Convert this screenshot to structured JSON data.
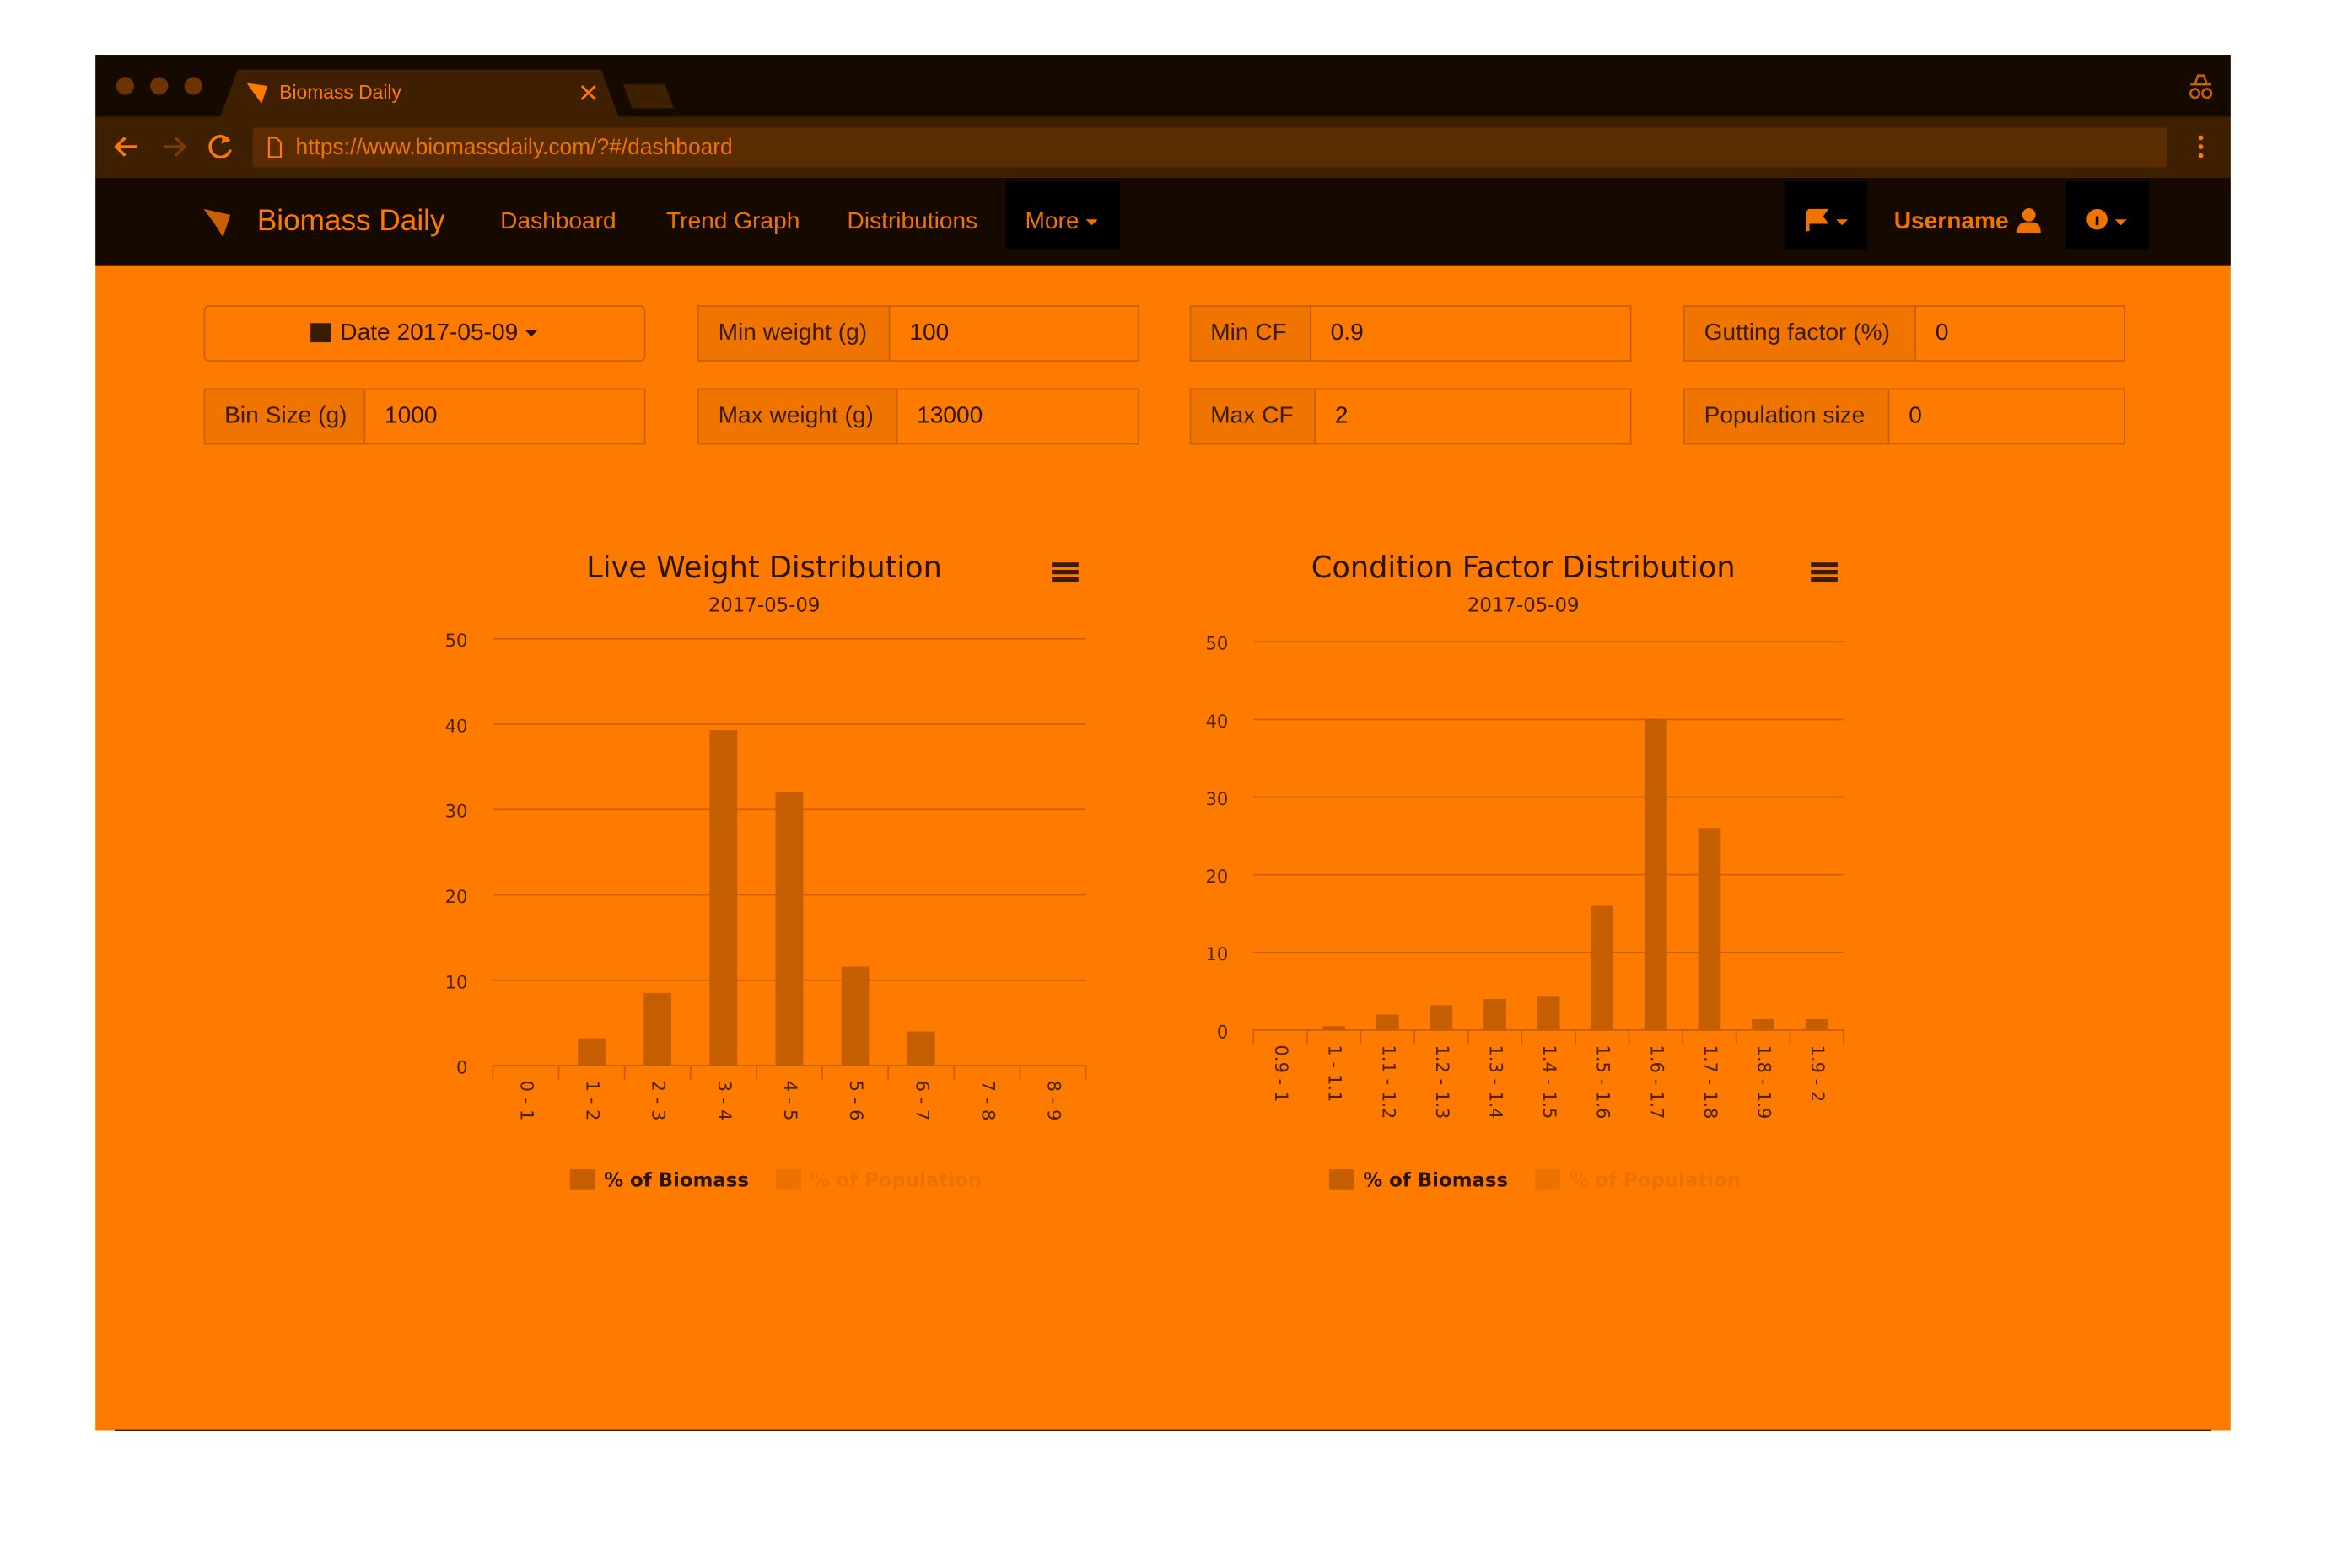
{
  "browser": {
    "tab_title": "Biomass Daily",
    "url": "https://www.biomassdaily.com/?#/dashboard"
  },
  "navbar": {
    "brand": "Biomass Daily",
    "links": [
      "Dashboard",
      "Trend Graph",
      "Distributions"
    ],
    "more": "More",
    "username": "Username"
  },
  "filters": {
    "date": "Date 2017-05-09",
    "fields": [
      {
        "label": "Min weight (g)",
        "value": "100"
      },
      {
        "label": "Min CF",
        "value": "0.9"
      },
      {
        "label": "Gutting factor (%)",
        "value": "0"
      },
      {
        "label": "Bin Size (g)",
        "value": "1000"
      },
      {
        "label": "Max weight (g)",
        "value": "13000"
      },
      {
        "label": "Max CF",
        "value": "2"
      },
      {
        "label": "Population size",
        "value": "0"
      }
    ]
  },
  "chart_data": [
    {
      "type": "bar",
      "title": "Live Weight Distribution",
      "subtitle": "2017-05-09",
      "categories": [
        "0 - 1",
        "1 - 2",
        "2 - 3",
        "3 - 4",
        "4 - 5",
        "5 - 6",
        "6 - 7",
        "7 - 8",
        "8 - 9"
      ],
      "series": [
        {
          "name": "% of Biomass",
          "color": "#c45e00",
          "visible": true,
          "values": [
            0,
            3.2,
            8.5,
            39.3,
            32,
            11.6,
            4,
            0,
            0
          ]
        },
        {
          "name": "% of Population",
          "color": "#ec7200",
          "visible": false,
          "values": [
            null,
            null,
            null,
            null,
            null,
            null,
            null,
            null,
            null
          ]
        }
      ],
      "ylim": [
        0,
        50
      ],
      "yticks": [
        0,
        10,
        20,
        30,
        40,
        50
      ],
      "grid": true
    },
    {
      "type": "bar",
      "title": "Condition Factor Distribution",
      "subtitle": "2017-05-09",
      "categories": [
        "0.9 - 1",
        "1 - 1.1",
        "1.1 - 1.2",
        "1.2 - 1.3",
        "1.3 - 1.4",
        "1.4 - 1.5",
        "1.5 - 1.6",
        "1.6 - 1.7",
        "1.7 - 1.8",
        "1.8 - 1.9",
        "1.9 - 2"
      ],
      "series": [
        {
          "name": "% of Biomass",
          "color": "#c45e00",
          "visible": true,
          "values": [
            0,
            0.5,
            2,
            3.2,
            4,
            4.3,
            16,
            40,
            26,
            1.4,
            1.4
          ]
        },
        {
          "name": "% of Population",
          "color": "#ec7200",
          "visible": false,
          "values": [
            null,
            null,
            null,
            null,
            null,
            null,
            null,
            null,
            null,
            null,
            null
          ]
        }
      ],
      "ylim": [
        0,
        50
      ],
      "yticks": [
        0,
        10,
        20,
        30,
        40,
        50
      ],
      "grid": true
    }
  ]
}
